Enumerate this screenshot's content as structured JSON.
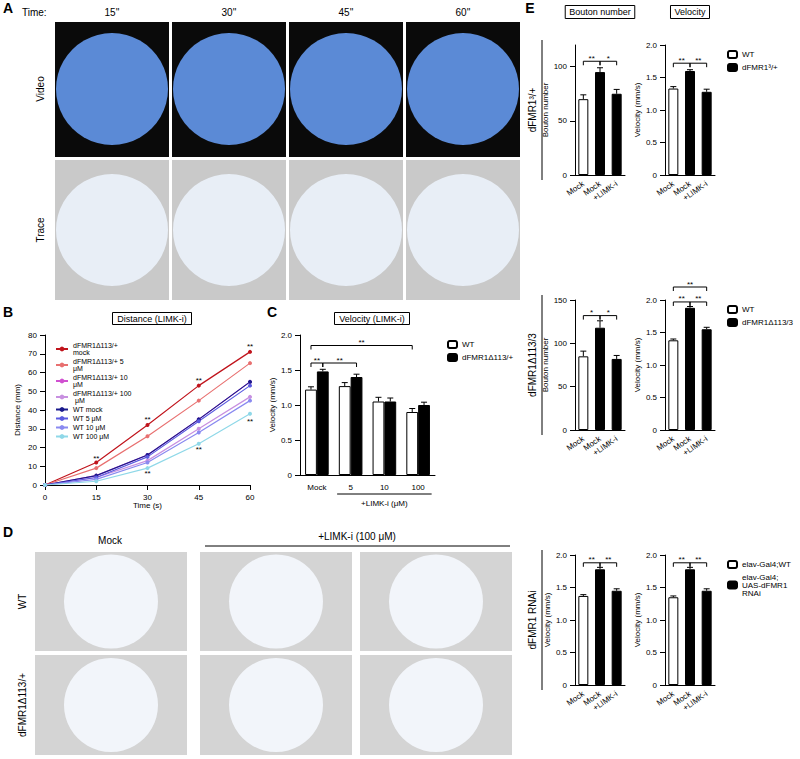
{
  "figure": {
    "panel_labels": [
      "A",
      "B",
      "C",
      "D",
      "E"
    ],
    "A": {
      "time_label": "Time:",
      "times": [
        "15''",
        "30''",
        "45''",
        "60''"
      ],
      "rows": [
        "Video",
        "Trace"
      ]
    },
    "D": {
      "columns": [
        "Mock",
        "+LIMK-i (100 μM)"
      ],
      "rows": [
        "WT",
        "dFMR1Δ113/+"
      ]
    },
    "E": {
      "columns": [
        "Bouton number",
        "Velocity"
      ],
      "rows": [
        "dFMR1³/+",
        "dFMR1Δ113/3",
        "dFMR1 RNAi"
      ]
    }
  },
  "chart_data": [
    {
      "type": "line",
      "title": "Distance (LIMK-i)",
      "xlabel": "Time (s)",
      "ylabel": "Distance (mm)",
      "x": [
        0,
        15,
        30,
        45,
        60
      ],
      "xlim": [
        0,
        60
      ],
      "xticks": [
        0,
        15,
        30,
        45,
        60
      ],
      "ylim": [
        0,
        80
      ],
      "yticks": [
        0,
        10,
        20,
        30,
        40,
        50,
        60,
        70,
        80
      ],
      "grid": false,
      "legend": "top left",
      "marker": "circle",
      "series": [
        {
          "name": "dFMR1Δ113/+ mock",
          "color": "#c0141c",
          "values": [
            0,
            12,
            32,
            53,
            71
          ]
        },
        {
          "name": "dFMR1Δ113/+ 5 μM",
          "color": "#e87070",
          "values": [
            0,
            9,
            26,
            45,
            65
          ]
        },
        {
          "name": "dFMR1Δ113/+ 10 μM",
          "color": "#d050d0",
          "values": [
            0,
            5,
            16,
            35,
            55
          ]
        },
        {
          "name": "dFMR1Δ113/+ 100 μM",
          "color": "#c890e0",
          "values": [
            0,
            4,
            13,
            30,
            47
          ]
        },
        {
          "name": "WT mock",
          "color": "#1a1a8c",
          "values": [
            0,
            5,
            16,
            35,
            55
          ]
        },
        {
          "name": "WT 5 μM",
          "color": "#5b5be0",
          "values": [
            0,
            4,
            15,
            34,
            53
          ]
        },
        {
          "name": "WT 10 μM",
          "color": "#8a8af0",
          "values": [
            0,
            3,
            12,
            28,
            45
          ]
        },
        {
          "name": "WT 100 μM",
          "color": "#8fd8e8",
          "values": [
            0,
            2,
            9,
            22,
            38
          ]
        }
      ],
      "annotations": [
        {
          "x": 15,
          "y": 14,
          "text": "**"
        },
        {
          "x": 30,
          "y": 35,
          "text": "**"
        },
        {
          "x": 45,
          "y": 56,
          "text": "**"
        },
        {
          "x": 60,
          "y": 74,
          "text": "**"
        },
        {
          "x": 30,
          "y": 6,
          "text": "**"
        },
        {
          "x": 45,
          "y": 19,
          "text": "**"
        },
        {
          "x": 60,
          "y": 34,
          "text": "**"
        }
      ]
    },
    {
      "type": "bar",
      "title": "Velocity (LIMK-i)",
      "ylabel": "Velocity (mm/s)",
      "xlabel": "+LIMK-i (μM)",
      "xlabel_span": [
        1,
        3
      ],
      "categories": [
        "Mock",
        "5",
        "10",
        "100"
      ],
      "ylim": [
        0,
        2
      ],
      "yticks": [
        0,
        0.5,
        {
          "value": 1,
          "label": "1.0"
        },
        1.5,
        {
          "value": 2,
          "label": "2.0"
        }
      ],
      "grid": false,
      "legend": "top right",
      "series": [
        {
          "name": "WT",
          "color": "#ffffff",
          "values": [
            1.22,
            1.27,
            1.05,
            0.9
          ],
          "errors": [
            0.04,
            0.05,
            0.06,
            0.05
          ]
        },
        {
          "name": "dFMR1Δ113/+",
          "color": "#000000",
          "values": [
            1.48,
            1.4,
            1.05,
            1.0
          ],
          "errors": [
            0.03,
            0.04,
            0.05,
            0.04
          ]
        }
      ],
      "annotations": [
        {
          "from": 0,
          "from_series": "WT",
          "to": 0,
          "to_series": "dFMR1Δ113/+",
          "y": 1.6,
          "text": "**"
        },
        {
          "from": 0,
          "from_series": "dFMR1Δ113/+",
          "to": 1,
          "to_series": "dFMR1Δ113/+",
          "y": 1.6,
          "text": "**"
        },
        {
          "from": 0,
          "from_series": "WT",
          "to": 3,
          "to_series": "WT",
          "y": 1.85,
          "text": "**"
        }
      ]
    },
    {
      "type": "bar",
      "ylabel": "Bouton number",
      "categories": [
        "Mock",
        "Mock",
        "+LIMK-i"
      ],
      "ylim": [
        0,
        120
      ],
      "yticks": [
        0,
        50,
        100
      ],
      "grid": false,
      "series": [
        {
          "name": "WT",
          "color": "#ffffff",
          "values": [
            70,
            null,
            null
          ],
          "errors": [
            4,
            null,
            null
          ]
        },
        {
          "name": "dFMR1³/+",
          "color": "#000000",
          "values": [
            null,
            95,
            75
          ],
          "errors": [
            null,
            4,
            4
          ]
        }
      ],
      "annotations": [
        {
          "from": 0,
          "to": 1,
          "y": 105,
          "text": "**"
        },
        {
          "from": 1,
          "to": 2,
          "y": 105,
          "text": "*"
        }
      ]
    },
    {
      "type": "bar",
      "ylabel": "Velocity (mm/s)",
      "categories": [
        "Mock",
        "Mock",
        "+LIMK-i"
      ],
      "ylim": [
        0,
        2
      ],
      "yticks": [
        0,
        0.5,
        {
          "value": 1,
          "label": "1.0"
        },
        1.5,
        {
          "value": 2,
          "label": "2.0"
        }
      ],
      "grid": false,
      "legend": "top right",
      "series": [
        {
          "name": "WT",
          "color": "#ffffff",
          "values": [
            1.33,
            null,
            null
          ],
          "errors": [
            0.03,
            null,
            null
          ]
        },
        {
          "name": "dFMR1³/+",
          "color": "#000000",
          "values": [
            null,
            1.6,
            1.28
          ],
          "errors": [
            null,
            0.02,
            0.04
          ]
        }
      ],
      "annotations": [
        {
          "from": 0,
          "to": 1,
          "y": 1.72,
          "text": "**"
        },
        {
          "from": 1,
          "to": 2,
          "y": 1.72,
          "text": "**"
        }
      ]
    },
    {
      "type": "bar",
      "ylabel": "Bouton number",
      "categories": [
        "Mock",
        "Mock",
        "+LIMK-i"
      ],
      "ylim": [
        0,
        150
      ],
      "yticks": [
        0,
        50,
        100,
        150
      ],
      "grid": false,
      "series": [
        {
          "name": "WT",
          "color": "#ffffff",
          "values": [
            85,
            null,
            null
          ],
          "errors": [
            6,
            null,
            null
          ]
        },
        {
          "name": "dFMR1Δ113/3",
          "color": "#000000",
          "values": [
            null,
            118,
            82
          ],
          "errors": [
            null,
            8,
            4
          ]
        }
      ],
      "annotations": [
        {
          "from": 0,
          "to": 1,
          "y": 132,
          "text": "*"
        },
        {
          "from": 1,
          "to": 2,
          "y": 132,
          "text": "*"
        }
      ]
    },
    {
      "type": "bar",
      "ylabel": "Velocity (mm/s)",
      "categories": [
        "Mock",
        "Mock",
        "+LIMK-i"
      ],
      "ylim": [
        0,
        2
      ],
      "yticks": [
        0,
        0.5,
        {
          "value": 1,
          "label": "1.0"
        },
        1.5,
        {
          "value": 2,
          "label": "2.0"
        }
      ],
      "grid": false,
      "legend": "top right",
      "series": [
        {
          "name": "WT",
          "color": "#ffffff",
          "values": [
            1.38,
            null,
            null
          ],
          "errors": [
            0.02,
            null,
            null
          ]
        },
        {
          "name": "dFMR1Δ113/3",
          "color": "#000000",
          "values": [
            null,
            1.88,
            1.55
          ],
          "errors": [
            null,
            0.02,
            0.03
          ]
        }
      ],
      "annotations": [
        {
          "from": 0,
          "to": 1,
          "y": 1.97,
          "text": "**"
        },
        {
          "from": 1,
          "to": 2,
          "y": 1.97,
          "text": "**"
        },
        {
          "from": 0,
          "to": 2,
          "y": 2.2,
          "text": "**"
        }
      ]
    },
    {
      "type": "bar",
      "ylabel": "Velocity (mm/s)",
      "categories": [
        "Mock",
        "Mock",
        "+LIMK-i"
      ],
      "ylim": [
        0,
        2
      ],
      "yticks": [
        0,
        0.5,
        {
          "value": 1,
          "label": "1.0"
        },
        1.5,
        {
          "value": 2,
          "label": "2.0"
        }
      ],
      "grid": false,
      "series": [
        {
          "name": "elav-Gal4;WT",
          "color": "#ffffff",
          "values": [
            1.37,
            null,
            null
          ],
          "errors": [
            0.02,
            null,
            null
          ]
        },
        {
          "name": "elav-Gal4; UAS-dFMR1 RNAi",
          "color": "#000000",
          "values": [
            null,
            1.78,
            1.45
          ],
          "errors": [
            null,
            0.03,
            0.03
          ]
        }
      ],
      "annotations": [
        {
          "from": 0,
          "to": 1,
          "y": 1.88,
          "text": "**"
        },
        {
          "from": 1,
          "to": 2,
          "y": 1.88,
          "text": "**"
        }
      ]
    },
    {
      "type": "bar",
      "ylabel": "Velocity (mm/s)",
      "categories": [
        "Mock",
        "Mock",
        "+LIMK-i"
      ],
      "ylim": [
        0,
        2
      ],
      "yticks": [
        0,
        0.5,
        {
          "value": 1,
          "label": "1.0"
        },
        1.5,
        {
          "value": 2,
          "label": "2.0"
        }
      ],
      "grid": false,
      "legend": "top right",
      "series": [
        {
          "name": "elav-Gal4;WT",
          "color": "#ffffff",
          "values": [
            1.35,
            null,
            null
          ],
          "errors": [
            0.02,
            null,
            null
          ]
        },
        {
          "name": "elav-Gal4; UAS-dFMR1 RNAi",
          "color": "#000000",
          "values": [
            null,
            1.78,
            1.45
          ],
          "errors": [
            null,
            0.03,
            0.03
          ]
        }
      ],
      "annotations": [
        {
          "from": 0,
          "to": 1,
          "y": 1.88,
          "text": "**"
        },
        {
          "from": 1,
          "to": 2,
          "y": 1.88,
          "text": "**"
        }
      ]
    }
  ]
}
